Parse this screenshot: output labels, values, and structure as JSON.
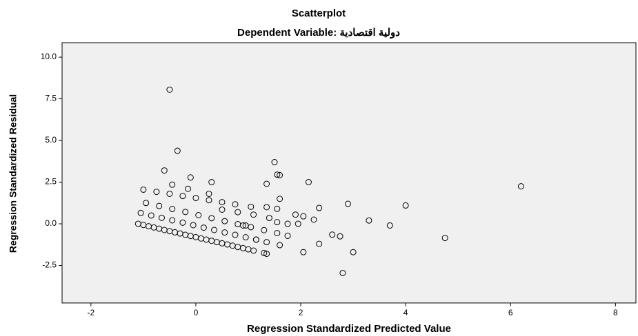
{
  "chart_data": {
    "type": "scatter",
    "title": "Scatterplot",
    "subtitle": "Dependent Variable: دولية اقتصادية",
    "x_label": "Regression Standardized Predicted Value",
    "y_label": "Regression Standardized Residual",
    "xlim": [
      -2.55,
      8.39
    ],
    "ylim": [
      -4.75,
      10.87
    ],
    "xticks": [
      -2,
      0,
      2,
      4,
      6,
      8
    ],
    "yticks": [
      {
        "value": 10,
        "label": "10.0"
      },
      7.5,
      {
        "value": 5,
        "label": "5.0"
      },
      2.5,
      {
        "value": 0,
        "label": "0.0"
      },
      -2.5
    ],
    "color": "#000000",
    "background": "#f0f0f0",
    "x": [
      -1.1,
      -1.0,
      -0.9,
      -0.8,
      -0.7,
      -0.6,
      -0.5,
      -0.4,
      -0.3,
      -0.2,
      -0.1,
      0,
      0.1,
      0.2,
      0.3,
      0.4,
      0.5,
      0.6,
      0.7,
      0.8,
      0.9,
      1.0,
      1.1,
      1.3,
      1.35,
      -1.05,
      -0.85,
      -0.65,
      -0.45,
      -0.25,
      -0.05,
      0.15,
      0.35,
      0.55,
      0.75,
      0.95,
      1.15,
      1.35,
      1.6,
      -0.95,
      -0.7,
      -0.45,
      -0.2,
      0.05,
      0.3,
      0.55,
      0.8,
      1.05,
      1.3,
      1.55,
      1.75,
      -1.0,
      -0.75,
      -0.5,
      -0.25,
      0,
      0.25,
      0.5,
      0.75,
      1.05,
      0.5,
      0.8,
      1.1,
      1.4,
      1.55,
      1.75,
      -0.5,
      -0.35,
      -0.6,
      -0.45,
      -0.1,
      -0.15,
      0.3,
      0.25,
      1.5,
      1.55,
      1.6,
      1.35,
      2.15,
      1.6,
      1.55,
      1.9,
      2.05,
      2.25,
      2.35,
      2.05,
      2.35,
      2.6,
      2.75,
      2.8,
      2.9,
      3.0,
      3.3,
      3.7,
      4.0,
      4.75,
      6.2,
      1.95,
      1.35,
      1.15,
      0.95,
      0.9
    ],
    "values": [
      0,
      -0.07,
      -0.15,
      -0.22,
      -0.29,
      -0.37,
      -0.44,
      -0.51,
      -0.58,
      -0.66,
      -0.73,
      -0.8,
      -0.88,
      -0.95,
      -1.02,
      -1.1,
      -1.17,
      -1.24,
      -1.31,
      -1.39,
      -1.46,
      -1.53,
      -1.61,
      -1.75,
      -1.8,
      0.65,
      0.5,
      0.36,
      0.21,
      0.07,
      -0.08,
      -0.23,
      -0.37,
      -0.52,
      -0.66,
      -0.81,
      -0.95,
      -1.1,
      -1.28,
      1.25,
      1.07,
      0.89,
      0.71,
      0.52,
      0.34,
      0.16,
      -0.02,
      -0.2,
      -0.38,
      -0.56,
      -0.72,
      2.05,
      1.92,
      1.8,
      1.67,
      1.55,
      1.42,
      1.3,
      1.17,
      1.02,
      0.85,
      0.7,
      0.55,
      0.35,
      0.1,
      0.0,
      8.05,
      4.38,
      3.2,
      2.35,
      2.78,
      2.1,
      2.5,
      1.8,
      3.7,
      2.95,
      2.92,
      2.4,
      2.5,
      1.5,
      0.9,
      0.55,
      0.45,
      0.25,
      0.95,
      -1.7,
      -1.2,
      -0.65,
      -0.75,
      -2.95,
      1.2,
      -1.7,
      0.2,
      -0.1,
      1.1,
      -0.85,
      2.25,
      0.0,
      1.0,
      -0.95,
      -0.1,
      -0.1
    ]
  }
}
